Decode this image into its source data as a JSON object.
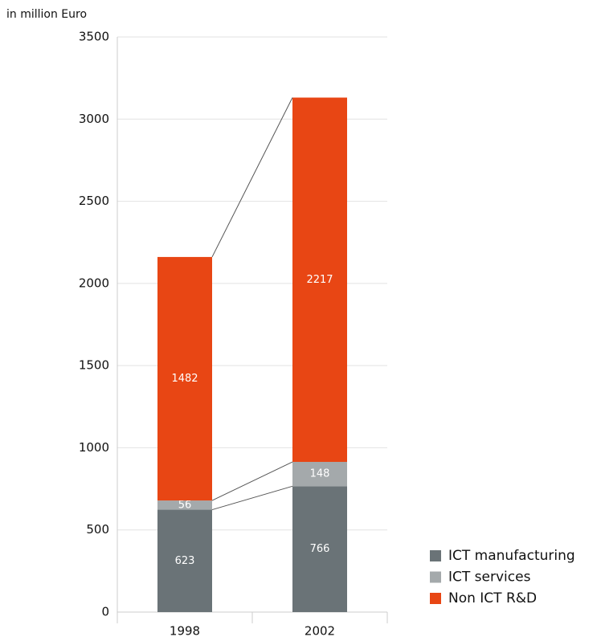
{
  "chart_data": {
    "type": "stacked_bar",
    "y_axis_label": "in million Euro",
    "categories": [
      "1998",
      "2002"
    ],
    "series": [
      {
        "name": "ICT manufacturing",
        "color": "#6a7377",
        "values": [
          623,
          766
        ]
      },
      {
        "name": "ICT services",
        "color": "#a4a9ab",
        "values": [
          56,
          148
        ]
      },
      {
        "name": "Non ICT R&D",
        "color": "#e84614",
        "values": [
          1482,
          2217
        ]
      }
    ],
    "ylim": [
      0,
      3500
    ],
    "yticks": [
      0,
      500,
      1000,
      1500,
      2000,
      2500,
      3000,
      3500
    ],
    "grid": true
  }
}
